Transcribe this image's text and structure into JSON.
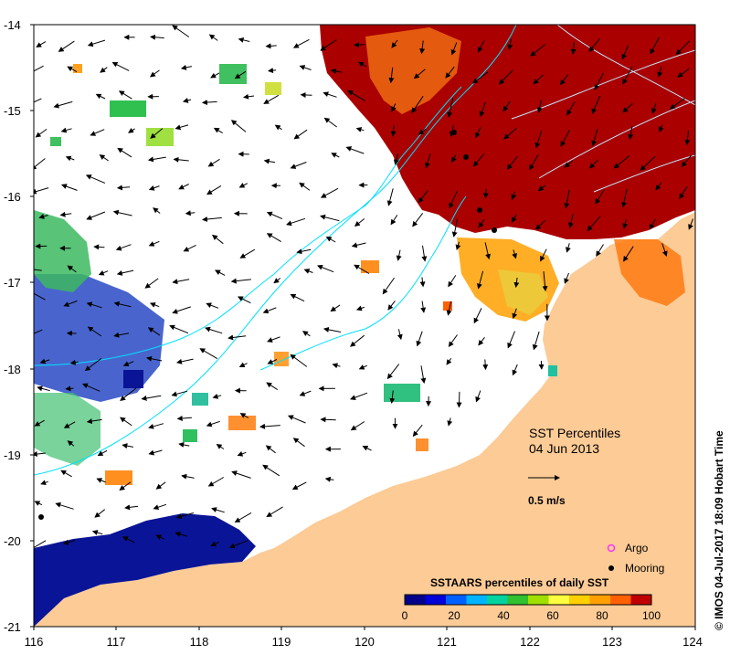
{
  "map": {
    "title_line1": "SST Percentiles",
    "title_line2": "04 Jun 2013",
    "scale_label": "0.5 m/s",
    "credit": "© IMOS 04-Jul-2017 18:09 Hobart Time",
    "lon_ticks": [
      "116",
      "117",
      "118",
      "119",
      "120",
      "121",
      "122",
      "123",
      "124"
    ],
    "lat_ticks": [
      "-14",
      "-15",
      "-16",
      "-17",
      "-18",
      "-19",
      "-20",
      "-21"
    ],
    "legend": [
      {
        "label": "Argo",
        "symbol": "argo-marker",
        "color": "#ff33ff"
      },
      {
        "label": "Mooring",
        "symbol": "mooring-marker",
        "color": "#000000"
      }
    ],
    "colorbar": {
      "title": "SSTAARS percentiles of daily SST",
      "ticks": [
        "0",
        "20",
        "40",
        "60",
        "80",
        "100"
      ],
      "colors": [
        "#00008b",
        "#0000d8",
        "#0060ff",
        "#00b4ff",
        "#00d2a0",
        "#30c030",
        "#a0e000",
        "#ffff40",
        "#ffd000",
        "#ffa000",
        "#ff6000",
        "#c00000"
      ]
    },
    "colors": {
      "land": "#fccb96",
      "ocean": "#ffffff",
      "current_vectors": "#000000",
      "isobath": "#00e0ff"
    }
  }
}
